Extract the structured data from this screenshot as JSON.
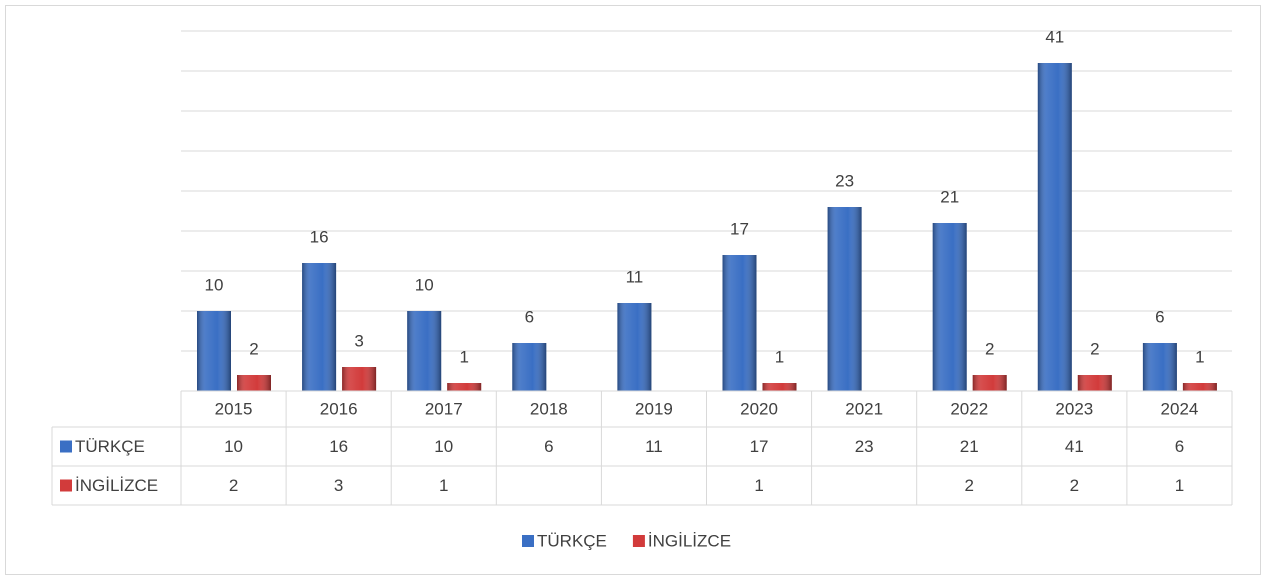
{
  "chart_data": {
    "type": "bar",
    "categories": [
      "2015",
      "2016",
      "2017",
      "2018",
      "2019",
      "2020",
      "2021",
      "2022",
      "2023",
      "2024"
    ],
    "series": [
      {
        "name": "TÜRKÇE",
        "color": "#3a6fc4",
        "values": [
          10,
          16,
          10,
          6,
          11,
          17,
          23,
          21,
          41,
          6
        ]
      },
      {
        "name": "İNGİLİZCE",
        "color": "#d23b3b",
        "values": [
          2,
          3,
          1,
          null,
          null,
          1,
          null,
          2,
          2,
          1
        ]
      }
    ],
    "ylim": [
      0,
      45
    ],
    "yticks": [
      0,
      5,
      10,
      15,
      20,
      25,
      30,
      35,
      40,
      45
    ],
    "grid": true,
    "legend": "bottom"
  }
}
